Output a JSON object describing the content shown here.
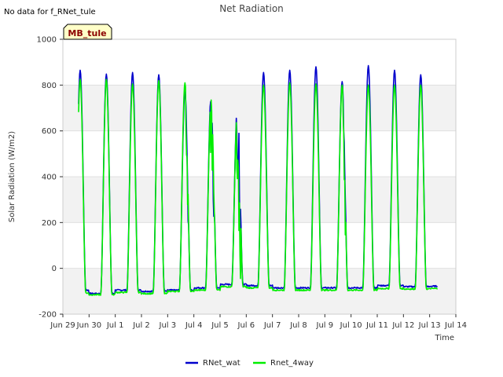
{
  "chart_data": {
    "type": "line",
    "title": "Net Radiation",
    "corner_note": "No data for f_RNet_tule",
    "site_label": "MB_tule",
    "xlabel": "Time",
    "ylabel": "Solar Radiation (W/m2)",
    "ylim": [
      -200,
      1000
    ],
    "yticks": [
      -200,
      0,
      200,
      400,
      600,
      800,
      1000
    ],
    "xlim_days": [
      0,
      15
    ],
    "xtick_days": [
      0,
      1,
      2,
      3,
      4,
      5,
      6,
      7,
      8,
      9,
      10,
      11,
      12,
      13,
      14,
      15
    ],
    "xtick_labels": [
      "Jun 29",
      "Jun 30",
      "Jul 1",
      "Jul 2",
      "Jul 3",
      "Jul 4",
      "Jul 5",
      "Jul 6",
      "Jul 7",
      "Jul 8",
      "Jul 9",
      "Jul 10",
      "Jul 11",
      "Jul 12",
      "Jul 13",
      "Jul 14"
    ],
    "data_start_day": 0.6,
    "data_end_day": 14.3,
    "day_offset": 0.66,
    "day_width": 0.42,
    "grid": true,
    "legend_position": "bottom-center",
    "series": [
      {
        "name": "RNet_wat",
        "color": "#0000cc",
        "night": [
          -95,
          -110,
          -95,
          -100,
          -95,
          -85,
          -70,
          -75,
          -85,
          -85,
          -85,
          -85,
          -75,
          -80,
          -78
        ],
        "peaks": [
          865,
          848,
          855,
          845,
          770,
          765,
          710,
          855,
          865,
          880,
          815,
          885,
          865,
          845
        ]
      },
      {
        "name": "Rnet_4way",
        "color": "#00ee00",
        "night": [
          -108,
          -115,
          -105,
          -110,
          -100,
          -95,
          -80,
          -85,
          -95,
          -95,
          -95,
          -95,
          -88,
          -90,
          -88
        ],
        "peaks": [
          825,
          825,
          805,
          820,
          810,
          740,
          690,
          800,
          810,
          805,
          800,
          800,
          800,
          800
        ]
      }
    ]
  }
}
